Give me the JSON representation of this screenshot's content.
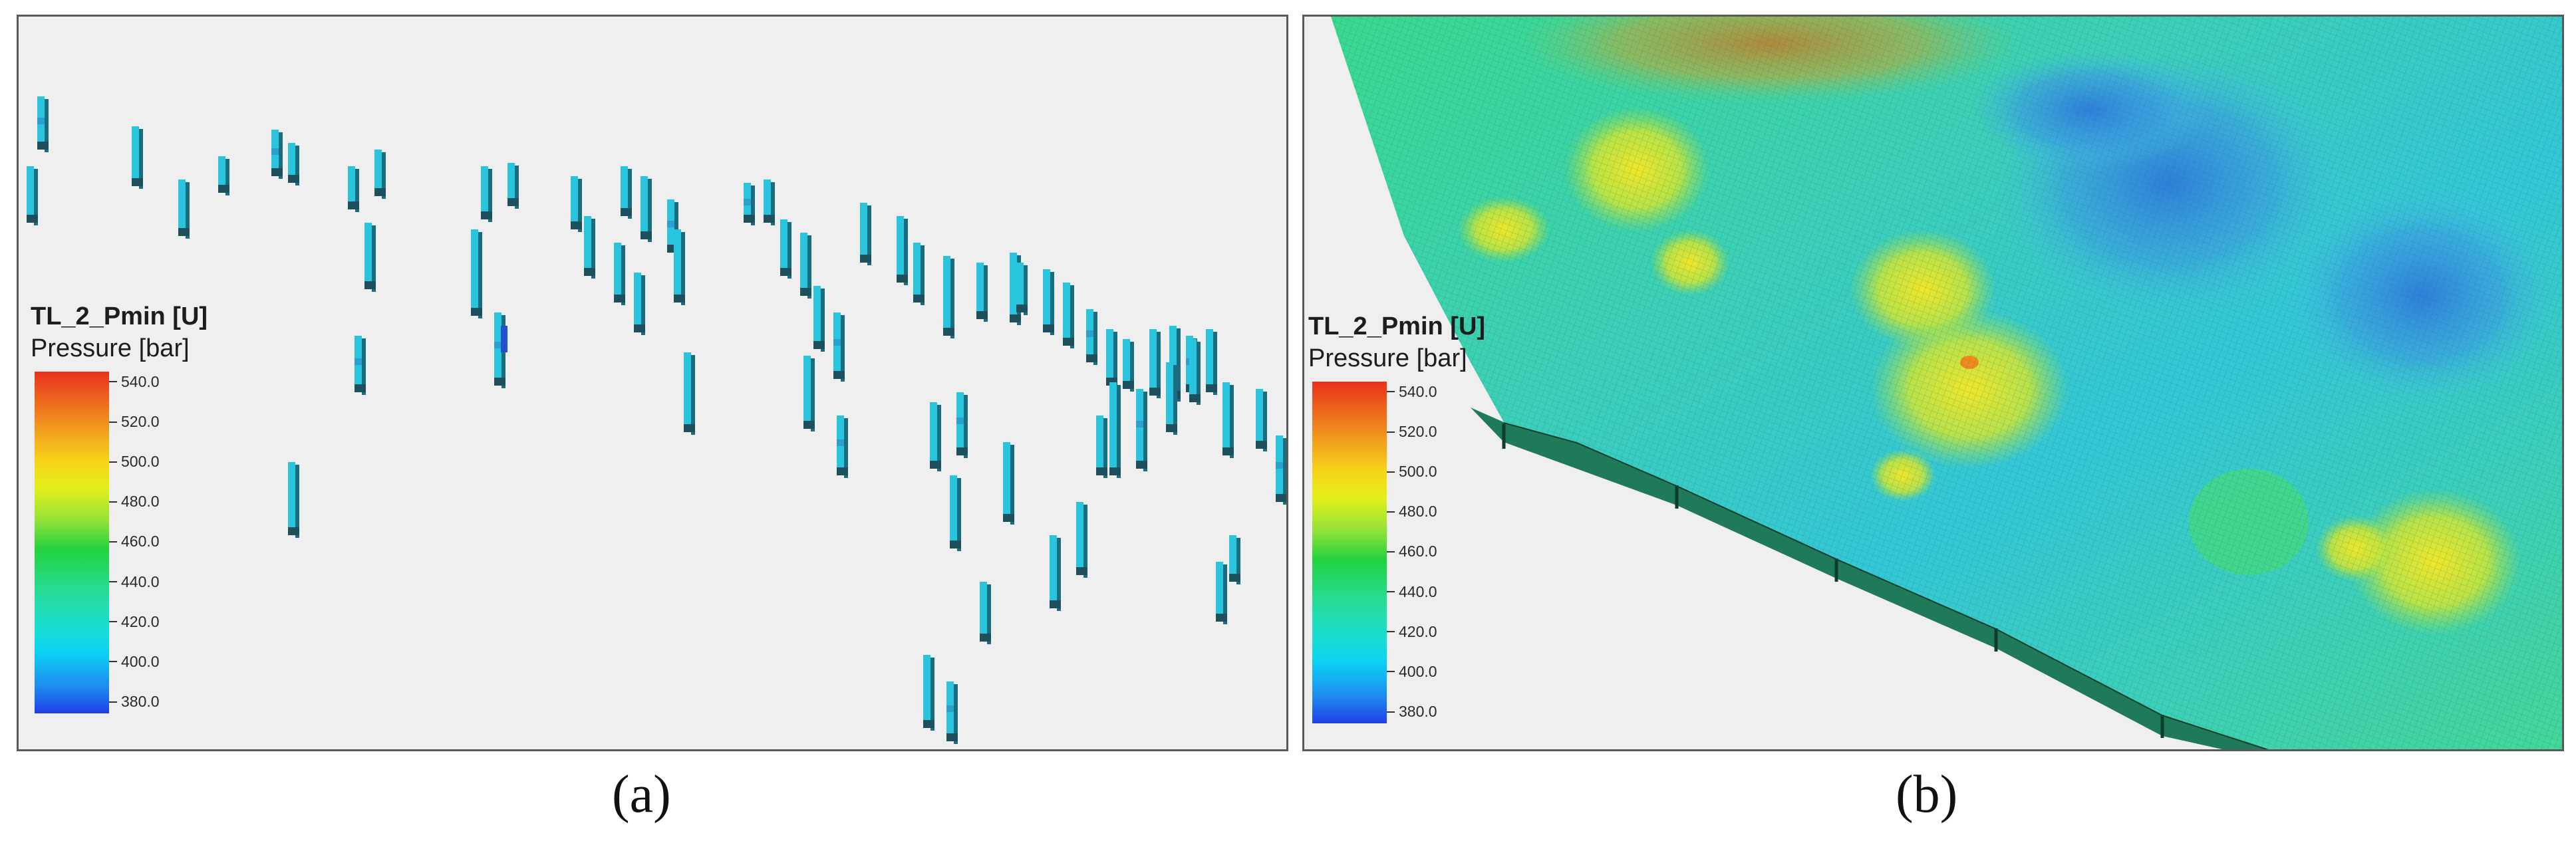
{
  "panels": [
    {
      "id": "a",
      "caption": "(a)",
      "legend": {
        "title": "TL_2_Pmin [U]",
        "subtitle": "Pressure [bar]",
        "ticks": [
          "540.0",
          "520.0",
          "500.0",
          "480.0",
          "460.0",
          "440.0",
          "420.0",
          "400.0",
          "380.0"
        ]
      }
    },
    {
      "id": "b",
      "caption": "(b)",
      "legend": {
        "title": "TL_2_Pmin [U]",
        "subtitle": "Pressure [bar]",
        "ticks": [
          "540.0",
          "520.0",
          "500.0",
          "480.0",
          "460.0",
          "440.0",
          "420.0",
          "400.0",
          "380.0"
        ]
      }
    }
  ],
  "colors": {
    "panel_background": "#efefef",
    "well_cyan": "#29c4de",
    "well_dark": "#1a6d7e",
    "surface_green": "#3fd98a",
    "surface_cyan": "#33cfe0",
    "surface_yellow": "#e3ea2a",
    "surface_blue": "#2f8fe0"
  }
}
